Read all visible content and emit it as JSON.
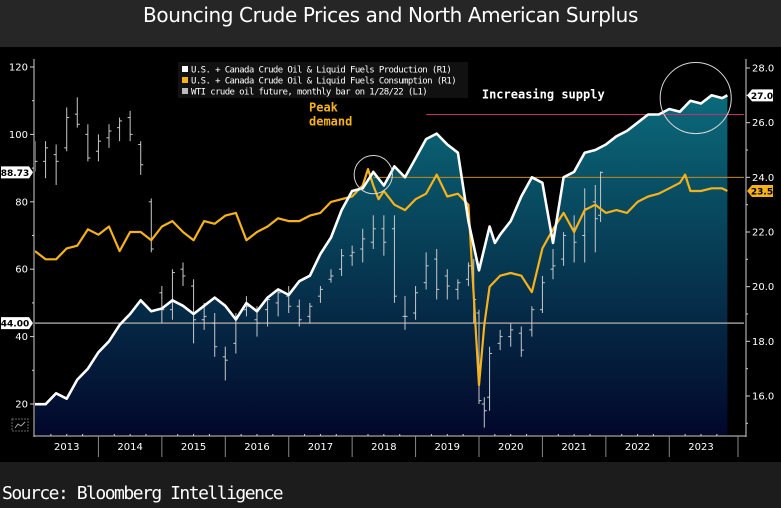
{
  "title": "Bouncing Crude Prices and North American Surplus",
  "source": "Source: Bloomberg Intelligence",
  "colors": {
    "production": "#ffffff",
    "consumption": "#f5b21a",
    "wti": "#c8c8c8",
    "area_top": "#0b6a7a",
    "area_bottom": "#02072a",
    "ref_pink": "#c2306e",
    "ref_orange": "#c98a1c",
    "ref_grey": "#9a9a9a",
    "axis": "#d0d0d0"
  },
  "chart_data": {
    "type": "line",
    "title": "Bouncing Crude Prices and North American Surplus",
    "x_unit": "months since Jan 2013",
    "x_range": [
      0,
      133
    ],
    "x_ticks": [
      {
        "label": "2013",
        "month": 0
      },
      {
        "label": "2014",
        "month": 12
      },
      {
        "label": "2015",
        "month": 24
      },
      {
        "label": "2016",
        "month": 36
      },
      {
        "label": "2017",
        "month": 48
      },
      {
        "label": "2018",
        "month": 60
      },
      {
        "label": "2019",
        "month": 72
      },
      {
        "label": "2020",
        "month": 84
      },
      {
        "label": "2021",
        "month": 96
      },
      {
        "label": "2022",
        "month": 108
      },
      {
        "label": "2023",
        "month": 120
      }
    ],
    "left_axis": {
      "name": "L1",
      "ylim": [
        13,
        122
      ],
      "ticks": [
        "20",
        "40",
        "60",
        "80",
        "100",
        "120"
      ],
      "tick_values": [
        20,
        40,
        60,
        80,
        100,
        120
      ],
      "minor": [
        30,
        50,
        70,
        90,
        110
      ]
    },
    "right_axis": {
      "name": "R1",
      "ylim": [
        15.0,
        28.0
      ],
      "ticks": [
        "16.0",
        "18.0",
        "20.0",
        "22.0",
        "24.0",
        "26.0",
        "28.0"
      ],
      "tick_values": [
        16,
        18,
        20,
        22,
        24,
        26,
        28
      ],
      "minor": [
        15,
        17,
        19,
        21,
        23,
        25,
        27
      ]
    },
    "legend": {
      "placement": "top-center",
      "entries": [
        {
          "label": "U.S. + Canada Crude Oil & Liquid Fuels Production  (R1)",
          "series": "production"
        },
        {
          "label": "U.S. + Canada Crude Oil & Liquid Fuels Consumption (R1)",
          "series": "consumption"
        },
        {
          "label": "WTI crude oil future, monthly bar on 1/28/22 (L1)",
          "series": "wti"
        }
      ]
    },
    "value_badges": [
      {
        "axis": "left",
        "label": "88.73",
        "value": 88.73,
        "style": "white"
      },
      {
        "axis": "left",
        "label": "44.00",
        "value": 44.0,
        "style": "white"
      },
      {
        "axis": "right",
        "label": "27.0",
        "value": 27.0,
        "style": "white"
      },
      {
        "axis": "right",
        "label": "23.5",
        "value": 23.5,
        "style": "orange"
      }
    ],
    "reference_lines": [
      {
        "axis": "right",
        "value": 26.3,
        "color": "ref_pink",
        "from_month": 74
      },
      {
        "axis": "right",
        "value": 24.0,
        "color": "ref_orange",
        "from_month": 64
      },
      {
        "axis": "left",
        "value": 44.0,
        "color": "ref_grey",
        "from_month": 0
      }
    ],
    "annotations": [
      {
        "lines": [
          "Peak",
          "demand"
        ],
        "month": 56,
        "value_r": 24.8,
        "color": "#f5b21a",
        "circle_month": 64,
        "circle_value_r": 24.1,
        "circle_r_units": 0.7
      },
      {
        "lines": [
          "Increasing supply"
        ],
        "month": 94,
        "value_r": 26.7,
        "color": "#ffffff",
        "circle_month": 125,
        "circle_value_r": 26.9,
        "circle_r_units": 1.3
      }
    ],
    "series": [
      {
        "name": "production",
        "axis": "right",
        "month": [
          0,
          2,
          4,
          6,
          8,
          10,
          12,
          14,
          16,
          18,
          20,
          22,
          24,
          26,
          28,
          30,
          32,
          34,
          36,
          38,
          40,
          42,
          44,
          46,
          48,
          50,
          52,
          54,
          56,
          58,
          60,
          62,
          64,
          66,
          68,
          70,
          72,
          74,
          76,
          78,
          80,
          82,
          84,
          86,
          87,
          88,
          90,
          92,
          94,
          96,
          98,
          100,
          102,
          104,
          106,
          108,
          110,
          112,
          114,
          116,
          118,
          120,
          122,
          124,
          126,
          128,
          130,
          131
        ],
        "values": [
          15.7,
          15.7,
          16.1,
          15.9,
          16.6,
          17.0,
          17.6,
          18.0,
          18.6,
          19.0,
          19.5,
          19.1,
          19.2,
          19.5,
          19.3,
          19.0,
          19.3,
          19.6,
          19.3,
          18.8,
          19.4,
          19.1,
          19.6,
          19.9,
          19.7,
          20.2,
          20.4,
          21.2,
          21.8,
          22.8,
          23.5,
          23.6,
          24.2,
          23.7,
          24.4,
          24.0,
          24.7,
          25.4,
          25.6,
          25.2,
          24.9,
          22.4,
          20.6,
          22.2,
          21.6,
          21.9,
          22.4,
          23.3,
          24.0,
          23.8,
          21.6,
          24.0,
          24.2,
          24.9,
          25.0,
          25.2,
          25.5,
          25.7,
          26.0,
          26.3,
          26.3,
          26.5,
          26.4,
          26.8,
          26.7,
          27.0,
          26.9,
          27.0
        ]
      },
      {
        "name": "consumption",
        "axis": "right",
        "month": [
          0,
          2,
          4,
          6,
          8,
          10,
          12,
          14,
          16,
          18,
          20,
          22,
          24,
          26,
          28,
          30,
          32,
          34,
          36,
          38,
          40,
          42,
          44,
          46,
          48,
          50,
          52,
          54,
          56,
          58,
          60,
          62,
          63,
          64,
          65,
          66,
          68,
          70,
          72,
          74,
          76,
          78,
          80,
          82,
          84,
          85,
          86,
          88,
          90,
          92,
          94,
          96,
          98,
          100,
          102,
          104,
          106,
          108,
          110,
          112,
          114,
          116,
          118,
          120,
          122,
          123,
          124,
          126,
          128,
          130,
          131
        ],
        "values": [
          21.3,
          21.0,
          21.0,
          21.4,
          21.5,
          22.1,
          21.9,
          22.2,
          21.3,
          22.0,
          22.0,
          21.7,
          22.2,
          22.4,
          22.0,
          21.7,
          22.4,
          22.3,
          22.6,
          22.7,
          21.7,
          22.0,
          22.2,
          22.5,
          22.4,
          22.4,
          22.6,
          22.7,
          23.1,
          23.2,
          23.3,
          23.7,
          24.3,
          23.7,
          23.2,
          23.5,
          23.0,
          22.8,
          23.2,
          23.4,
          24.1,
          23.3,
          23.4,
          23.0,
          16.4,
          18.6,
          20.0,
          20.4,
          20.5,
          20.4,
          19.8,
          21.4,
          22.1,
          22.7,
          22.0,
          22.8,
          23.0,
          22.7,
          22.8,
          22.7,
          23.1,
          23.3,
          23.4,
          23.6,
          23.8,
          24.1,
          23.5,
          23.5,
          23.6,
          23.6,
          23.5
        ]
      },
      {
        "name": "wti",
        "axis": "left",
        "type": "ohlc",
        "bars": [
          {
            "m": 0,
            "o": 95,
            "h": 98,
            "l": 89,
            "c": 92
          },
          {
            "m": 2,
            "o": 92,
            "h": 98,
            "l": 87,
            "c": 96
          },
          {
            "m": 4,
            "o": 94,
            "h": 97,
            "l": 85,
            "c": 92
          },
          {
            "m": 6,
            "o": 96,
            "h": 108,
            "l": 95,
            "c": 105
          },
          {
            "m": 8,
            "o": 106,
            "h": 111,
            "l": 102,
            "c": 103
          },
          {
            "m": 10,
            "o": 100,
            "h": 103,
            "l": 92,
            "c": 93
          },
          {
            "m": 12,
            "o": 95,
            "h": 100,
            "l": 92,
            "c": 98
          },
          {
            "m": 14,
            "o": 99,
            "h": 103,
            "l": 96,
            "c": 101
          },
          {
            "m": 16,
            "o": 102,
            "h": 105,
            "l": 98,
            "c": 104
          },
          {
            "m": 18,
            "o": 105,
            "h": 107,
            "l": 98,
            "c": 100
          },
          {
            "m": 20,
            "o": 97,
            "h": 98,
            "l": 88,
            "c": 91
          },
          {
            "m": 22,
            "o": 80,
            "h": 81,
            "l": 65,
            "c": 66
          },
          {
            "m": 24,
            "o": 53,
            "h": 55,
            "l": 44,
            "c": 48
          },
          {
            "m": 26,
            "o": 48,
            "h": 60,
            "l": 45,
            "c": 59
          },
          {
            "m": 28,
            "o": 60,
            "h": 62,
            "l": 55,
            "c": 58
          },
          {
            "m": 30,
            "o": 55,
            "h": 57,
            "l": 38,
            "c": 45
          },
          {
            "m": 32,
            "o": 45,
            "h": 50,
            "l": 42,
            "c": 46
          },
          {
            "m": 34,
            "o": 44,
            "h": 47,
            "l": 34,
            "c": 37
          },
          {
            "m": 36,
            "o": 34,
            "h": 37,
            "l": 27,
            "c": 33
          },
          {
            "m": 38,
            "o": 38,
            "h": 47,
            "l": 35,
            "c": 46
          },
          {
            "m": 40,
            "o": 48,
            "h": 52,
            "l": 46,
            "c": 49
          },
          {
            "m": 42,
            "o": 45,
            "h": 49,
            "l": 40,
            "c": 44
          },
          {
            "m": 44,
            "o": 48,
            "h": 52,
            "l": 43,
            "c": 51
          },
          {
            "m": 46,
            "o": 50,
            "h": 54,
            "l": 46,
            "c": 53
          },
          {
            "m": 48,
            "o": 52,
            "h": 55,
            "l": 47,
            "c": 49
          },
          {
            "m": 50,
            "o": 49,
            "h": 51,
            "l": 43,
            "c": 45
          },
          {
            "m": 52,
            "o": 46,
            "h": 50,
            "l": 44,
            "c": 49
          },
          {
            "m": 54,
            "o": 52,
            "h": 55,
            "l": 50,
            "c": 54
          },
          {
            "m": 56,
            "o": 57,
            "h": 60,
            "l": 56,
            "c": 58
          },
          {
            "m": 58,
            "o": 60,
            "h": 66,
            "l": 58,
            "c": 64
          },
          {
            "m": 60,
            "o": 64,
            "h": 67,
            "l": 61,
            "c": 65
          },
          {
            "m": 62,
            "o": 66,
            "h": 72,
            "l": 62,
            "c": 69
          },
          {
            "m": 64,
            "o": 68,
            "h": 76,
            "l": 66,
            "c": 72
          },
          {
            "m": 66,
            "o": 72,
            "h": 76,
            "l": 64,
            "c": 68
          },
          {
            "m": 68,
            "o": 72,
            "h": 76,
            "l": 50,
            "c": 52
          },
          {
            "m": 70,
            "o": 46,
            "h": 52,
            "l": 42,
            "c": 46
          },
          {
            "m": 72,
            "o": 47,
            "h": 55,
            "l": 45,
            "c": 53
          },
          {
            "m": 74,
            "o": 56,
            "h": 65,
            "l": 54,
            "c": 61
          },
          {
            "m": 76,
            "o": 63,
            "h": 66,
            "l": 51,
            "c": 54
          },
          {
            "m": 78,
            "o": 58,
            "h": 60,
            "l": 51,
            "c": 55
          },
          {
            "m": 80,
            "o": 54,
            "h": 57,
            "l": 51,
            "c": 56
          },
          {
            "m": 82,
            "o": 57,
            "h": 62,
            "l": 55,
            "c": 61
          },
          {
            "m": 83,
            "o": 60,
            "h": 63,
            "l": 44,
            "c": 51
          },
          {
            "m": 84,
            "o": 47,
            "h": 48,
            "l": 20,
            "c": 21
          },
          {
            "m": 85,
            "o": 20,
            "h": 22,
            "l": 13,
            "c": 18
          },
          {
            "m": 86,
            "o": 22,
            "h": 37,
            "l": 18,
            "c": 35
          },
          {
            "m": 88,
            "o": 38,
            "h": 42,
            "l": 36,
            "c": 40
          },
          {
            "m": 90,
            "o": 40,
            "h": 44,
            "l": 37,
            "c": 42
          },
          {
            "m": 92,
            "o": 41,
            "h": 43,
            "l": 34,
            "c": 36
          },
          {
            "m": 94,
            "o": 42,
            "h": 49,
            "l": 40,
            "c": 48
          },
          {
            "m": 96,
            "o": 48,
            "h": 58,
            "l": 47,
            "c": 56
          },
          {
            "m": 98,
            "o": 60,
            "h": 66,
            "l": 57,
            "c": 61
          },
          {
            "m": 100,
            "o": 63,
            "h": 71,
            "l": 61,
            "c": 70
          },
          {
            "m": 102,
            "o": 72,
            "h": 76,
            "l": 62,
            "c": 68
          },
          {
            "m": 104,
            "o": 70,
            "h": 84,
            "l": 62,
            "c": 78
          },
          {
            "m": 106,
            "o": 80,
            "h": 85,
            "l": 65,
            "c": 75
          },
          {
            "m": 107,
            "o": 76,
            "h": 89,
            "l": 74,
            "c": 88.73
          }
        ]
      }
    ]
  }
}
